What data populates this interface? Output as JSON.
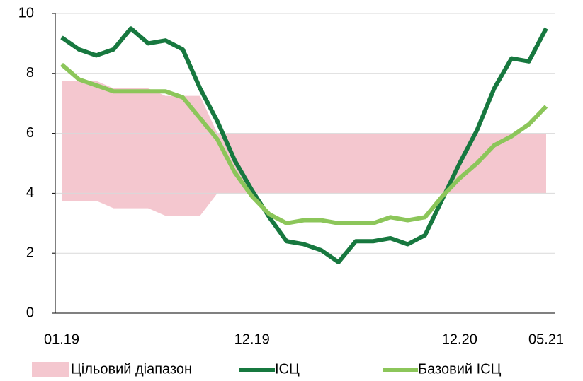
{
  "chart_data": {
    "type": "line",
    "categories": [
      "01.19",
      null,
      null,
      null,
      null,
      null,
      null,
      null,
      null,
      null,
      null,
      "12.19",
      null,
      null,
      null,
      null,
      null,
      null,
      null,
      null,
      null,
      null,
      null,
      "12.20",
      null,
      null,
      null,
      null,
      "05.21"
    ],
    "band": {
      "name": "Цільовий діапазон",
      "color": "#f4c7cf",
      "lower": [
        3.75,
        3.75,
        3.75,
        3.5,
        3.5,
        3.5,
        3.25,
        3.25,
        3.25,
        4,
        4,
        4,
        4,
        4,
        4,
        4,
        4,
        4,
        4,
        4,
        4,
        4,
        4,
        4,
        4,
        4,
        4,
        4,
        4
      ],
      "upper": [
        7.75,
        7.75,
        7.75,
        7.5,
        7.5,
        7.5,
        7.25,
        7.25,
        7.25,
        6,
        6,
        6,
        6,
        6,
        6,
        6,
        6,
        6,
        6,
        6,
        6,
        6,
        6,
        6,
        6,
        6,
        6,
        6,
        6
      ]
    },
    "series": [
      {
        "name": "ІСЦ",
        "color": "#17783f",
        "values": [
          9.2,
          8.8,
          8.6,
          8.8,
          9.5,
          9.0,
          9.1,
          8.8,
          7.5,
          6.4,
          5.1,
          4.1,
          3.2,
          2.4,
          2.3,
          2.1,
          1.7,
          2.4,
          2.4,
          2.5,
          2.3,
          2.6,
          3.8,
          5.0,
          6.1,
          7.5,
          8.5,
          8.4,
          9.5
        ]
      },
      {
        "name": "Базовий ІСЦ",
        "color": "#8cc65a",
        "values": [
          8.3,
          7.8,
          7.6,
          7.4,
          7.4,
          7.4,
          7.4,
          7.2,
          6.5,
          5.8,
          4.7,
          3.9,
          3.3,
          3.0,
          3.1,
          3.1,
          3.0,
          3.0,
          3.0,
          3.2,
          3.1,
          3.2,
          3.9,
          4.5,
          5.0,
          5.6,
          5.9,
          6.3,
          6.9
        ]
      }
    ],
    "ylim": [
      0,
      10
    ],
    "yticks": [
      0,
      2,
      4,
      6,
      8,
      10
    ],
    "grid": true,
    "legend": "bottom"
  }
}
